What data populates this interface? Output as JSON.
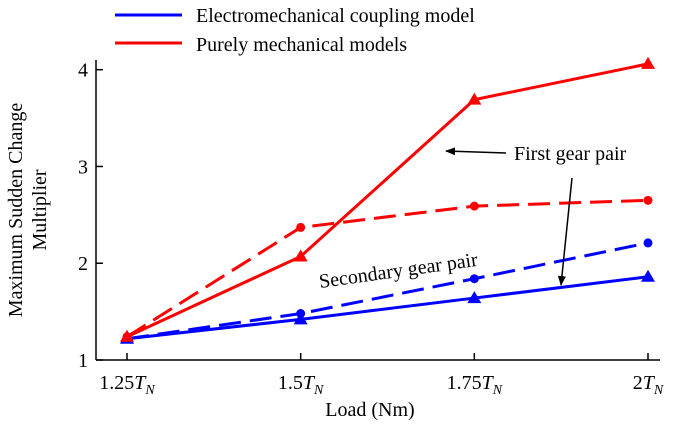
{
  "chart_data": {
    "type": "line",
    "title": "",
    "xlabel": "Load (Nm)",
    "ylabel_lines": [
      "Maximum Sudden Change",
      "Multiplier"
    ],
    "categories": [
      {
        "main": "1.25",
        "sym": "T",
        "sub": "N"
      },
      {
        "main": "1.5",
        "sym": "T",
        "sub": "N"
      },
      {
        "main": "1.75",
        "sym": "T",
        "sub": "N"
      },
      {
        "main": "2",
        "sym": "T",
        "sub": "N"
      }
    ],
    "ylim": [
      1,
      4.1
    ],
    "yticks": [
      1,
      2,
      3,
      4
    ],
    "grid": false,
    "legend_position": "top-left",
    "legend": [
      {
        "label": "Electromechanical coupling model",
        "color": "#0000ff"
      },
      {
        "label": "Purely mechanical models",
        "color": "#ff0000"
      }
    ],
    "series": [
      {
        "key": "em_first",
        "color": "#0000ff",
        "dash": false,
        "marker": "triangle",
        "values": [
          1.22,
          1.42,
          1.64,
          1.86
        ]
      },
      {
        "key": "em_second",
        "color": "#0000ff",
        "dash": true,
        "marker": "circle",
        "values": [
          1.22,
          1.48,
          1.84,
          2.21
        ]
      },
      {
        "key": "mech_first",
        "color": "#ff0000",
        "dash": false,
        "marker": "triangle",
        "values": [
          1.24,
          2.07,
          3.69,
          4.06
        ]
      },
      {
        "key": "mech_second",
        "color": "#ff0000",
        "dash": true,
        "marker": "circle",
        "values": [
          1.24,
          2.37,
          2.59,
          2.65
        ]
      }
    ],
    "annotations": {
      "first_gear_pair": "First gear pair",
      "secondary_gear_pair": "Secondary gear pair"
    }
  }
}
